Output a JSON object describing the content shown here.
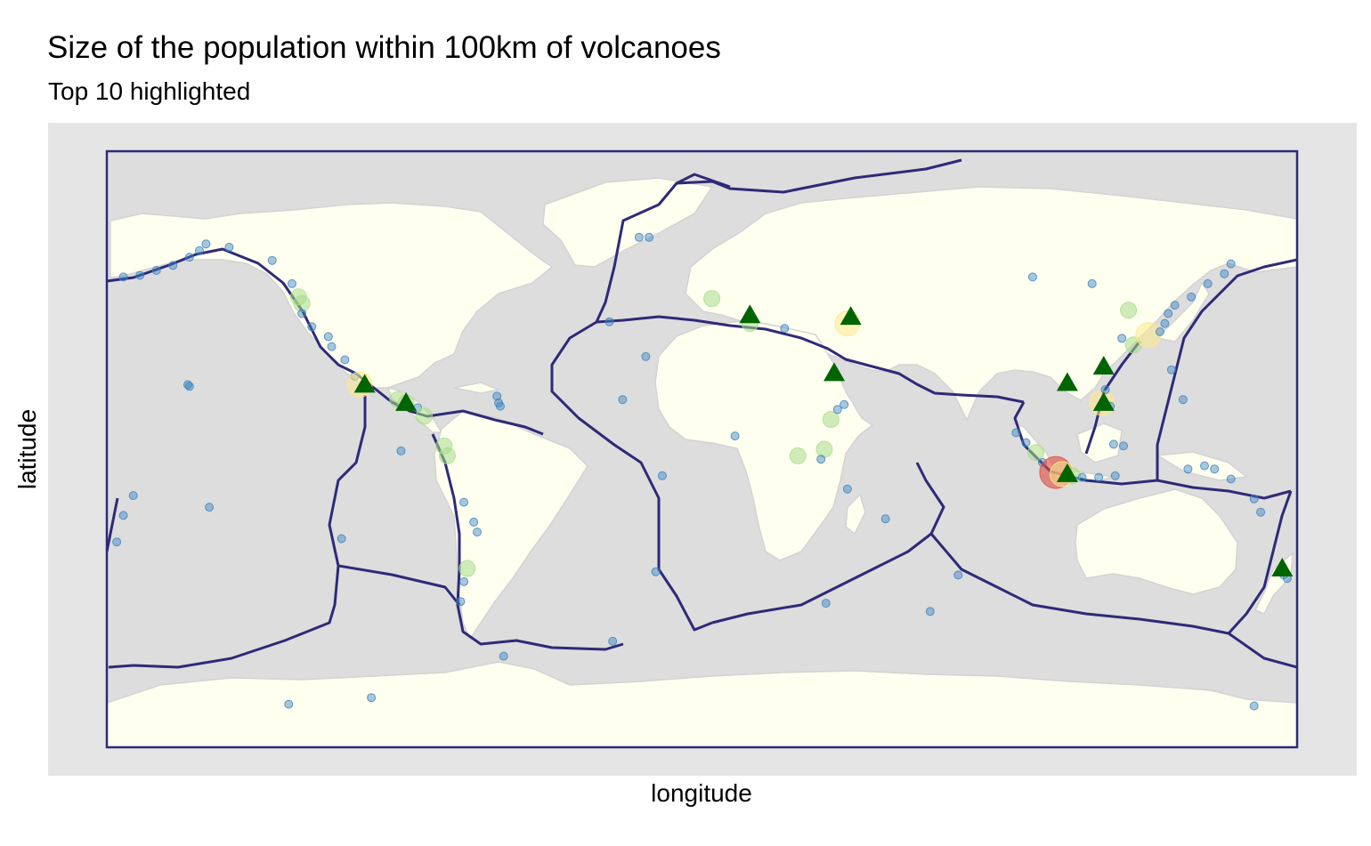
{
  "chart_data": {
    "type": "scatter",
    "title": "Size of the population within 100km of volcanoes",
    "subtitle": "Top 10 highlighted",
    "xlabel": "longitude",
    "ylabel": "latitude",
    "xlim": [
      -180,
      180
    ],
    "ylim": [
      -90,
      90
    ],
    "grid": false,
    "legend": "none",
    "colors": {
      "panel_background": "#e5e5e5",
      "ocean": "#dddddd",
      "land": "#fffff0",
      "borders": "#d3d3d3",
      "plate_boundaries": "#2e2a78",
      "volcano_low": "#3a82c0",
      "volcano_mid": "#a8dd8b",
      "volcano_high": "#fde98b",
      "volcano_top": "#e04a3e",
      "top10_marker": "#006400"
    },
    "series": [
      {
        "marker": "circle",
        "volcanoes": [
          {
            "lon": -175,
            "lat": 52,
            "level": 0
          },
          {
            "lon": -170,
            "lat": 52.5,
            "level": 0
          },
          {
            "lon": -165,
            "lat": 54,
            "level": 0
          },
          {
            "lon": -160,
            "lat": 55.5,
            "level": 0
          },
          {
            "lon": -155,
            "lat": 58,
            "level": 0
          },
          {
            "lon": -152,
            "lat": 60,
            "level": 0
          },
          {
            "lon": -150,
            "lat": 62,
            "level": 0
          },
          {
            "lon": -143,
            "lat": 61,
            "level": 0
          },
          {
            "lon": -130,
            "lat": 57,
            "level": 0
          },
          {
            "lon": -124,
            "lat": 50,
            "level": 0
          },
          {
            "lon": -122,
            "lat": 46,
            "level": 1
          },
          {
            "lon": -121,
            "lat": 44,
            "level": 1
          },
          {
            "lon": -121,
            "lat": 41,
            "level": 0
          },
          {
            "lon": -118,
            "lat": 37,
            "level": 0
          },
          {
            "lon": -113,
            "lat": 34,
            "level": 0
          },
          {
            "lon": -112,
            "lat": 31,
            "level": 0
          },
          {
            "lon": -108,
            "lat": 27,
            "level": 0
          },
          {
            "lon": -105,
            "lat": 22,
            "level": 0
          },
          {
            "lon": -103.5,
            "lat": 19.5,
            "level": 2
          },
          {
            "lon": -92,
            "lat": 15,
            "level": 1
          },
          {
            "lon": -89.5,
            "lat": 14,
            "level": 1
          },
          {
            "lon": -86,
            "lat": 12.5,
            "level": 0
          },
          {
            "lon": -84,
            "lat": 10,
            "level": 1
          },
          {
            "lon": -78,
            "lat": 1,
            "level": 1
          },
          {
            "lon": -77,
            "lat": -2,
            "level": 1
          },
          {
            "lon": -72,
            "lat": -16,
            "level": 0
          },
          {
            "lon": -69,
            "lat": -22,
            "level": 0
          },
          {
            "lon": -68,
            "lat": -25,
            "level": 0
          },
          {
            "lon": -71,
            "lat": -36,
            "level": 1
          },
          {
            "lon": -72,
            "lat": -40,
            "level": 0
          },
          {
            "lon": -73,
            "lat": -46,
            "level": 0
          },
          {
            "lon": -62,
            "lat": 16,
            "level": 0
          },
          {
            "lon": -61.5,
            "lat": 14,
            "level": 0
          },
          {
            "lon": -61,
            "lat": 13,
            "level": 0
          },
          {
            "lon": -19,
            "lat": 64,
            "level": 0
          },
          {
            "lon": -16,
            "lat": 64,
            "level": 0
          },
          {
            "lon": -28,
            "lat": 38.5,
            "level": 0
          },
          {
            "lon": -17,
            "lat": 28,
            "level": 0
          },
          {
            "lon": -24,
            "lat": 15,
            "level": 0
          },
          {
            "lon": 3,
            "lat": 45.5,
            "level": 1
          },
          {
            "lon": 14.5,
            "lat": 38,
            "level": 1
          },
          {
            "lon": 25,
            "lat": 36.5,
            "level": 0
          },
          {
            "lon": 10,
            "lat": 4,
            "level": 0
          },
          {
            "lon": 29,
            "lat": -2,
            "level": 1
          },
          {
            "lon": 37,
            "lat": 0,
            "level": 1
          },
          {
            "lon": 36,
            "lat": -3,
            "level": 0
          },
          {
            "lon": 39,
            "lat": 9,
            "level": 1
          },
          {
            "lon": 41,
            "lat": 12,
            "level": 0
          },
          {
            "lon": 43,
            "lat": 13.5,
            "level": 0
          },
          {
            "lon": 44,
            "lat": 38,
            "level": 2
          },
          {
            "lon": 44,
            "lat": -12,
            "level": 0
          },
          {
            "lon": 55.5,
            "lat": -21,
            "level": 0
          },
          {
            "lon": 95,
            "lat": 5,
            "level": 0
          },
          {
            "lon": 98,
            "lat": 2,
            "level": 0
          },
          {
            "lon": 101,
            "lat": -1,
            "level": 1
          },
          {
            "lon": 103,
            "lat": -4,
            "level": 0
          },
          {
            "lon": 107,
            "lat": -7,
            "level": 3
          },
          {
            "lon": 109,
            "lat": -7.5,
            "level": 2
          },
          {
            "lon": 112,
            "lat": -8,
            "level": 1
          },
          {
            "lon": 115,
            "lat": -8.5,
            "level": 0
          },
          {
            "lon": 120,
            "lat": -8.5,
            "level": 0
          },
          {
            "lon": 125,
            "lat": -8,
            "level": 0
          },
          {
            "lon": 124.5,
            "lat": 1.5,
            "level": 0
          },
          {
            "lon": 127.5,
            "lat": 1,
            "level": 0
          },
          {
            "lon": 121,
            "lat": 14,
            "level": 2
          },
          {
            "lon": 123.5,
            "lat": 13,
            "level": 0
          },
          {
            "lon": 122,
            "lat": 18,
            "level": 0
          },
          {
            "lon": 127,
            "lat": 33.5,
            "level": 0
          },
          {
            "lon": 130.5,
            "lat": 31.5,
            "level": 1
          },
          {
            "lon": 135,
            "lat": 34.5,
            "level": 2
          },
          {
            "lon": 138.5,
            "lat": 35.5,
            "level": 0
          },
          {
            "lon": 140,
            "lat": 38,
            "level": 0
          },
          {
            "lon": 141,
            "lat": 41,
            "level": 0
          },
          {
            "lon": 143,
            "lat": 43.5,
            "level": 0
          },
          {
            "lon": 148,
            "lat": 46,
            "level": 0
          },
          {
            "lon": 153,
            "lat": 50,
            "level": 0
          },
          {
            "lon": 158,
            "lat": 53,
            "level": 0
          },
          {
            "lon": 160,
            "lat": 56,
            "level": 0
          },
          {
            "lon": 145.5,
            "lat": 15,
            "level": 0
          },
          {
            "lon": 142,
            "lat": 24,
            "level": 0
          },
          {
            "lon": 147,
            "lat": -6,
            "level": 0
          },
          {
            "lon": 152,
            "lat": -5,
            "level": 0
          },
          {
            "lon": 155,
            "lat": -6,
            "level": 0
          },
          {
            "lon": 160,
            "lat": -9,
            "level": 0
          },
          {
            "lon": 167,
            "lat": -15,
            "level": 0
          },
          {
            "lon": 169,
            "lat": -19,
            "level": 0
          },
          {
            "lon": 176,
            "lat": -38,
            "level": 0
          },
          {
            "lon": 177,
            "lat": -39,
            "level": 0
          },
          {
            "lon": -155.5,
            "lat": 19.5,
            "level": 0
          },
          {
            "lon": -155,
            "lat": 19,
            "level": 0
          },
          {
            "lon": -172,
            "lat": -14,
            "level": 0
          },
          {
            "lon": -175,
            "lat": -20,
            "level": 0
          },
          {
            "lon": -177,
            "lat": -28,
            "level": 0
          },
          {
            "lon": -149,
            "lat": -17.5,
            "level": 0
          },
          {
            "lon": -109,
            "lat": -27,
            "level": 0
          },
          {
            "lon": -91,
            "lat": -0.5,
            "level": 0
          },
          {
            "lon": -14,
            "lat": -37,
            "level": 0
          },
          {
            "lon": -12,
            "lat": -8,
            "level": 0
          },
          {
            "lon": 69,
            "lat": -49,
            "level": 0
          },
          {
            "lon": 77.5,
            "lat": -38,
            "level": 0
          },
          {
            "lon": 37.5,
            "lat": -46.5,
            "level": 0
          },
          {
            "lon": -27,
            "lat": -58,
            "level": 0
          },
          {
            "lon": -60,
            "lat": -62.5,
            "level": 0
          },
          {
            "lon": 167,
            "lat": -77.5,
            "level": 0
          },
          {
            "lon": -100,
            "lat": -75,
            "level": 0
          },
          {
            "lon": -125,
            "lat": -77,
            "level": 0
          },
          {
            "lon": 100,
            "lat": 52,
            "level": 0
          },
          {
            "lon": 118,
            "lat": 50,
            "level": 0
          },
          {
            "lon": 129,
            "lat": 42,
            "level": 1
          }
        ]
      },
      {
        "marker": "triangle",
        "volcanoes": [
          {
            "lon": -102,
            "lat": 19.5
          },
          {
            "lon": -89.5,
            "lat": 14
          },
          {
            "lon": 14.5,
            "lat": 40.5
          },
          {
            "lon": 45,
            "lat": 40
          },
          {
            "lon": 40,
            "lat": 23
          },
          {
            "lon": 110.5,
            "lat": -7.5
          },
          {
            "lon": 110.5,
            "lat": 20
          },
          {
            "lon": 121.5,
            "lat": 14
          },
          {
            "lon": 121.5,
            "lat": 25
          },
          {
            "lon": 175.5,
            "lat": -36
          }
        ]
      }
    ]
  }
}
